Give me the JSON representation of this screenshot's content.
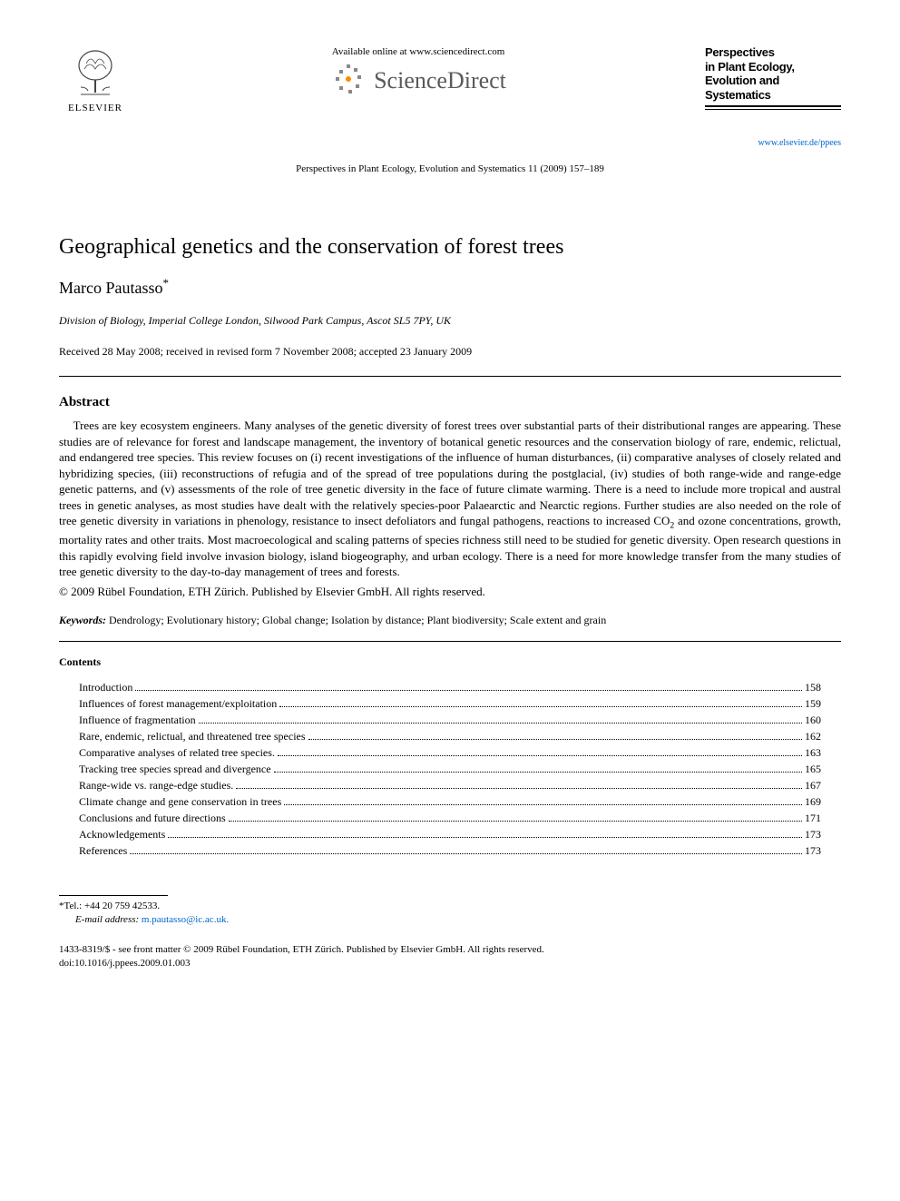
{
  "header": {
    "publisher_name": "ELSEVIER",
    "available_online": "Available online at www.sciencedirect.com",
    "sciencedirect": "ScienceDirect",
    "citation": "Perspectives in Plant Ecology, Evolution and Systematics 11 (2009) 157–189",
    "journal_title_line1": "Perspectives",
    "journal_title_line2": "in Plant Ecology,",
    "journal_title_line3": "Evolution and",
    "journal_title_line4": "Systematics",
    "journal_url": "www.elsevier.de/ppees"
  },
  "article": {
    "title": "Geographical genetics and the conservation of forest trees",
    "author": "Marco Pautasso",
    "author_marker": "*",
    "affiliation": "Division of Biology, Imperial College London, Silwood Park Campus, Ascot SL5 7PY, UK",
    "dates": "Received 28 May 2008; received in revised form 7 November 2008; accepted 23 January 2009"
  },
  "abstract": {
    "heading": "Abstract",
    "body_pre": "Trees are key ecosystem engineers. Many analyses of the genetic diversity of forest trees over substantial parts of their distributional ranges are appearing. These studies are of relevance for forest and landscape management, the inventory of botanical genetic resources and the conservation biology of rare, endemic, relictual, and endangered tree species. This review focuses on (i) recent investigations of the influence of human disturbances, (ii) comparative analyses of closely related and hybridizing species, (iii) reconstructions of refugia and of the spread of tree populations during the postglacial, (iv) studies of both range-wide and range-edge genetic patterns, and (v) assessments of the role of tree genetic diversity in the face of future climate warming. There is a need to include more tropical and austral trees in genetic analyses, as most studies have dealt with the relatively species-poor Palaearctic and Nearctic regions. Further studies are also needed on the role of tree genetic diversity in variations in phenology, resistance to insect defoliators and fungal pathogens, reactions to increased CO",
    "body_post": " and ozone concentrations, growth, mortality rates and other traits. Most macroecological and scaling patterns of species richness still need to be studied for genetic diversity. Open research questions in this rapidly evolving field involve invasion biology, island biogeography, and urban ecology. There is a need for more knowledge transfer from the many studies of tree genetic diversity to the day-to-day management of trees and forests.",
    "copyright": "© 2009 Rübel Foundation, ETH Zürich. Published by Elsevier GmbH. All rights reserved."
  },
  "keywords": {
    "label": "Keywords:",
    "list": " Dendrology; Evolutionary history; Global change; Isolation by distance; Plant biodiversity; Scale extent and grain"
  },
  "contents": {
    "heading": "Contents",
    "items": [
      {
        "label": "Introduction",
        "page": "158"
      },
      {
        "label": "Influences of forest management/exploitation",
        "page": "159"
      },
      {
        "label": "Influence of fragmentation",
        "page": "160"
      },
      {
        "label": "Rare, endemic, relictual, and threatened tree species",
        "page": "162"
      },
      {
        "label": "Comparative analyses of related tree species.",
        "page": "163"
      },
      {
        "label": "Tracking tree species spread and divergence",
        "page": "165"
      },
      {
        "label": "Range-wide vs. range-edge studies.",
        "page": "167"
      },
      {
        "label": "Climate change and gene conservation in trees",
        "page": "169"
      },
      {
        "label": "Conclusions and future directions",
        "page": "171"
      },
      {
        "label": "Acknowledgements",
        "page": "173"
      },
      {
        "label": "References",
        "page": "173"
      }
    ]
  },
  "footnote": {
    "tel_label": "*Tel.: ",
    "tel": "+44 20 759 42533.",
    "email_label": "E-mail address:",
    "email": " m.pautasso@ic.ac.uk."
  },
  "footer": {
    "line1": "1433-8319/$ - see front matter © 2009 Rübel Foundation, ETH Zürich. Published by Elsevier GmbH. All rights reserved.",
    "line2": "doi:10.1016/j.ppees.2009.01.003"
  },
  "colors": {
    "text": "#000000",
    "link": "#0066cc",
    "sd_gray": "#5a5a5a",
    "elsevier_orange": "#ff6600"
  }
}
